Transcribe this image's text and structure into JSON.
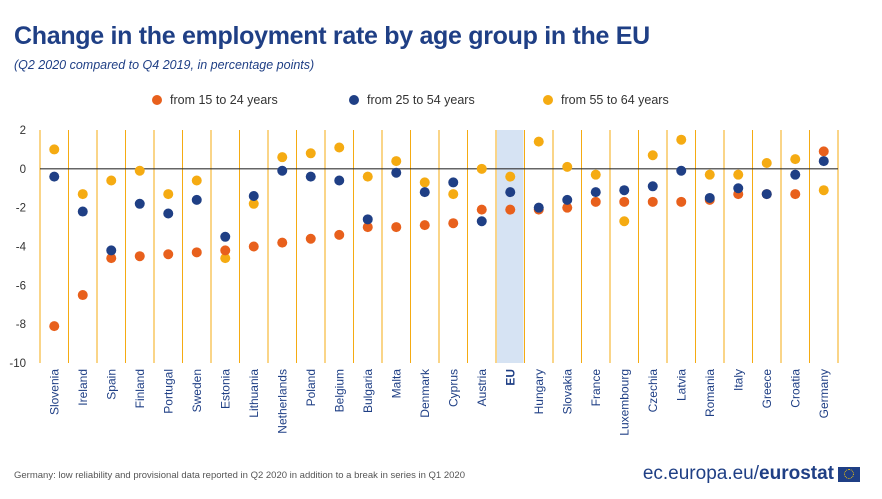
{
  "header": {
    "title": "Change in the employment rate by age group in the EU",
    "subtitle": "(Q2 2020 compared to Q4 2019, in percentage points)"
  },
  "footer": {
    "note": "Germany: low reliability and provisional data reported in Q2 2020 in addition to a break in series in Q1 2020",
    "brand_prefix": "ec.europa.eu/",
    "brand_bold": "eurostat"
  },
  "colors": {
    "age_15_24": "#e8601c",
    "age_25_54": "#1f3f85",
    "age_55_64": "#f5ab12",
    "divider": "#f5ab12",
    "highlight": "#d6e3f3",
    "zero_line": "#333333"
  },
  "chart_data": {
    "type": "scatter",
    "title": "Change in the employment rate by age group in the EU",
    "subtitle": "(Q2 2020 compared to Q4 2019, in percentage points)",
    "ylim": [
      -10,
      2
    ],
    "yticks": [
      2,
      0,
      -2,
      -4,
      -6,
      -8,
      -10
    ],
    "legend_position": "top",
    "highlight_category": "EU",
    "categories": [
      "Slovenia",
      "Ireland",
      "Spain",
      "Finland",
      "Portugal",
      "Sweden",
      "Estonia",
      "Lithuania",
      "Netherlands",
      "Poland",
      "Belgium",
      "Bulgaria",
      "Malta",
      "Denmark",
      "Cyprus",
      "Austria",
      "EU",
      "Hungary",
      "Slovakia",
      "France",
      "Luxembourg",
      "Czechia",
      "Latvia",
      "Romania",
      "Italy",
      "Greece",
      "Croatia",
      "Germany"
    ],
    "series": [
      {
        "name": "from 15 to 24 years",
        "color": "#e8601c",
        "values": [
          -8.1,
          -6.5,
          -4.6,
          -4.5,
          -4.4,
          -4.3,
          -4.2,
          -4.0,
          -3.8,
          -3.6,
          -3.4,
          -3.0,
          -3.0,
          -2.9,
          -2.8,
          -2.1,
          -2.1,
          -2.1,
          -2.0,
          -1.7,
          -1.7,
          -1.7,
          -1.7,
          -1.6,
          -1.3,
          -1.3,
          -1.3,
          0.9
        ]
      },
      {
        "name": "from 25 to 54 years",
        "color": "#1f3f85",
        "values": [
          -0.4,
          -2.2,
          -4.2,
          -1.8,
          -2.3,
          -1.6,
          -3.5,
          -1.4,
          -0.1,
          -0.4,
          -0.6,
          -2.6,
          -0.2,
          -1.2,
          -0.7,
          -2.7,
          -1.2,
          -2.0,
          -1.6,
          -1.2,
          -1.1,
          -0.9,
          -0.1,
          -1.5,
          -1.0,
          -1.3,
          -0.3,
          0.4
        ]
      },
      {
        "name": "from 55 to 64 years",
        "color": "#f5ab12",
        "values": [
          1.0,
          -1.3,
          -0.6,
          -0.1,
          -1.3,
          -0.6,
          -4.6,
          -1.8,
          0.6,
          0.8,
          1.1,
          -0.4,
          0.4,
          -0.7,
          -1.3,
          0.0,
          -0.4,
          1.4,
          0.1,
          -0.3,
          -2.7,
          0.7,
          1.5,
          -0.3,
          -0.3,
          0.3,
          0.5,
          -1.1
        ]
      }
    ]
  }
}
